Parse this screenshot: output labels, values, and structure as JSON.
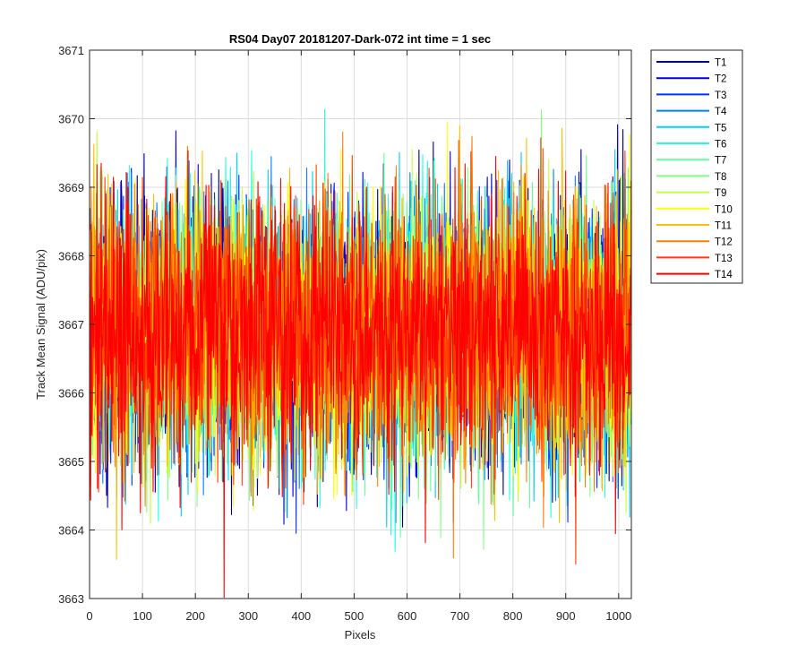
{
  "chart_data": {
    "type": "line",
    "title": "RS04 Day07 20181207-Dark-072 int time = 1 sec",
    "xlabel": "Pixels",
    "ylabel": "Track Mean Signal (ADU/pix)",
    "xlim": [
      0,
      1024
    ],
    "ylim": [
      3663,
      3671
    ],
    "xticks": [
      0,
      100,
      200,
      300,
      400,
      500,
      600,
      700,
      800,
      900,
      1000
    ],
    "yticks": [
      3663,
      3664,
      3665,
      3666,
      3667,
      3668,
      3669,
      3670,
      3671
    ],
    "grid": true,
    "legend_position": "outside-top-right",
    "n_points": 1024,
    "noise_description": "dense random noise per track",
    "series": [
      {
        "name": "T1",
        "color": "#00008f",
        "mean": 3666.9,
        "std": 0.95,
        "seed": 11
      },
      {
        "name": "T2",
        "color": "#0000df",
        "mean": 3666.9,
        "std": 0.95,
        "seed": 23
      },
      {
        "name": "T3",
        "color": "#0030ff",
        "mean": 3666.9,
        "std": 0.95,
        "seed": 37
      },
      {
        "name": "T4",
        "color": "#0080ff",
        "mean": 3666.9,
        "std": 0.95,
        "seed": 41
      },
      {
        "name": "T5",
        "color": "#00cfff",
        "mean": 3666.9,
        "std": 0.95,
        "seed": 53
      },
      {
        "name": "T6",
        "color": "#20ffdf",
        "mean": 3666.9,
        "std": 0.95,
        "seed": 67
      },
      {
        "name": "T7",
        "color": "#60ffa0",
        "mean": 3666.9,
        "std": 0.95,
        "seed": 71
      },
      {
        "name": "T8",
        "color": "#80ff80",
        "mean": 3666.9,
        "std": 0.95,
        "seed": 83
      },
      {
        "name": "T9",
        "color": "#c0ff40",
        "mean": 3666.9,
        "std": 0.95,
        "seed": 97
      },
      {
        "name": "T10",
        "color": "#ffff00",
        "mean": 3666.9,
        "std": 0.95,
        "seed": 101
      },
      {
        "name": "T11",
        "color": "#ffbf00",
        "mean": 3666.9,
        "std": 0.95,
        "seed": 113
      },
      {
        "name": "T12",
        "color": "#ff8000",
        "mean": 3666.9,
        "std": 0.95,
        "seed": 127
      },
      {
        "name": "T13",
        "color": "#ff4000",
        "mean": 3666.9,
        "std": 0.95,
        "seed": 131
      },
      {
        "name": "T14",
        "color": "#ff0000",
        "mean": 3666.9,
        "std": 0.95,
        "seed": 139
      }
    ]
  }
}
